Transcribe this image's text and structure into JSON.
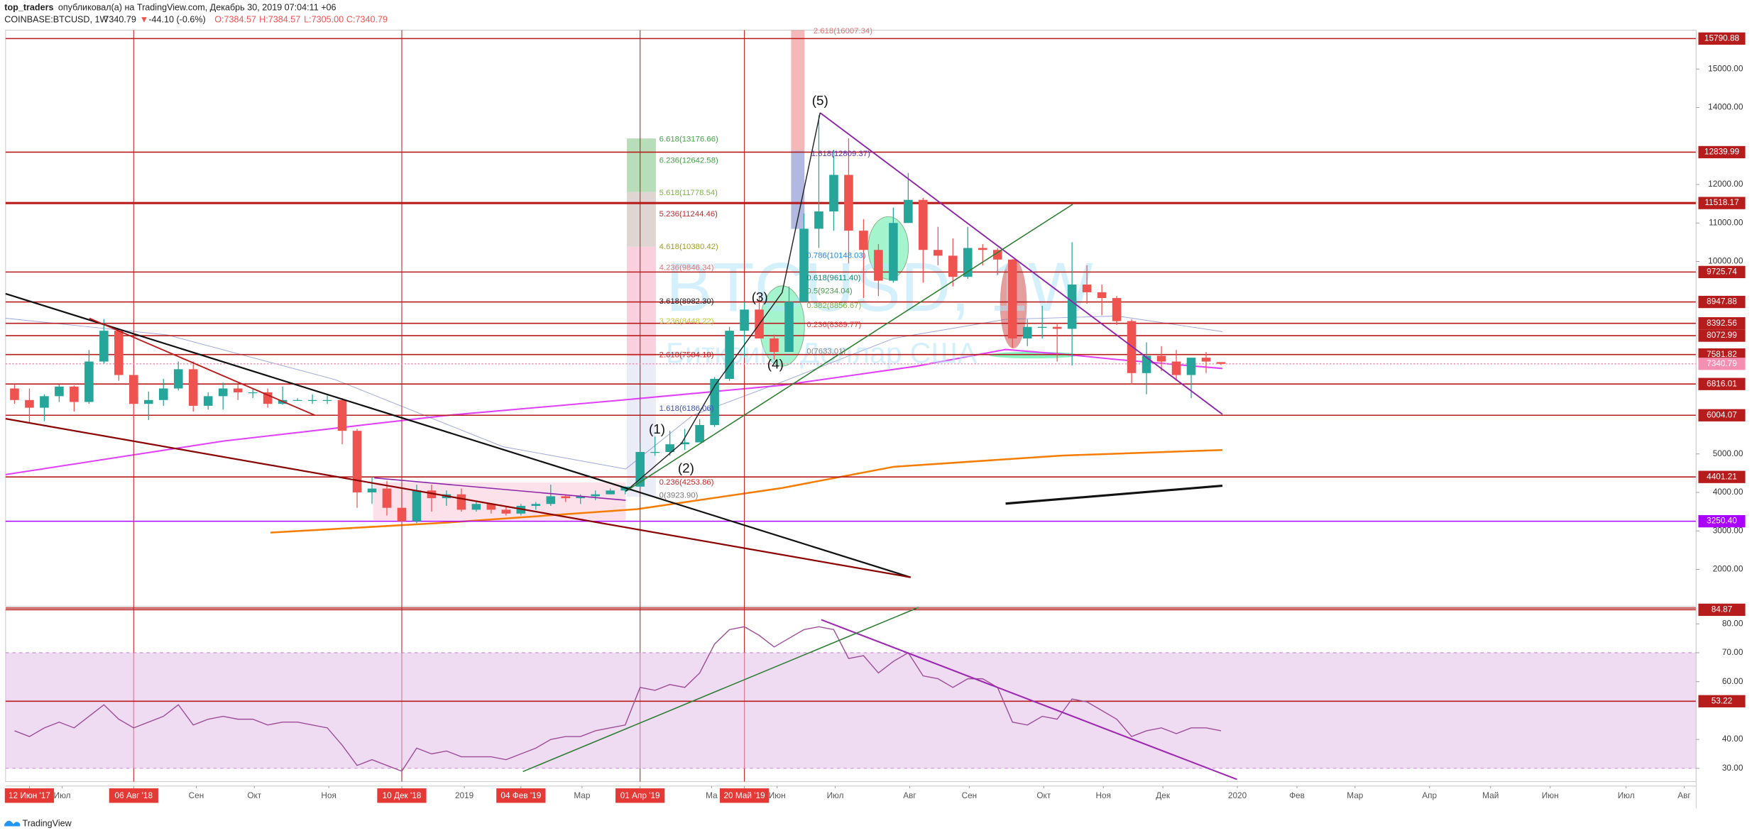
{
  "header": {
    "user": "top_traders",
    "published": "опубликовал(а) на TradingView.com, Декабрь 30, 2019 07:04:11 +06",
    "symbol": "COINBASE:BTCUSD, 1W",
    "last": "7340.79",
    "arrow": "▼",
    "change": "-44.10 (-0.6%)",
    "open": "O:7384.57",
    "high": "H:7384.57",
    "low": "L:7305.00",
    "close": "C:7340.79"
  },
  "footer": {
    "brand": "TradingView"
  },
  "chart_data": [
    {
      "type": "candlestick",
      "watermark": [
        "BTCUSD, 1W",
        "Биткоин / Доллар США"
      ],
      "up_color": "#26a69a",
      "down_color": "#ef5350",
      "x": [
        0,
        1,
        2,
        3,
        4,
        5,
        6,
        7,
        8,
        9,
        10,
        11,
        12,
        13,
        14,
        15,
        16,
        17,
        18,
        19,
        20,
        21,
        22,
        23,
        24,
        25,
        26,
        27,
        28,
        29,
        30,
        31,
        32,
        33,
        34,
        35,
        36,
        37,
        38,
        39,
        40,
        41,
        42,
        43,
        44,
        45,
        46,
        47,
        48,
        49,
        50,
        51,
        52,
        53,
        54,
        55,
        56,
        57,
        58,
        59,
        60,
        61,
        62,
        63,
        64,
        65,
        66,
        67,
        68,
        69,
        70,
        71,
        72,
        73,
        74,
        75,
        76,
        77,
        78,
        79,
        80,
        81
      ],
      "open": [
        6700,
        6400,
        6200,
        6500,
        6750,
        6350,
        7400,
        8200,
        7050,
        6300,
        6400,
        6700,
        7200,
        6250,
        6500,
        6700,
        6600,
        6600,
        6300,
        6400,
        6400,
        6400,
        6400,
        5600,
        4000,
        4100,
        3600,
        3250,
        4050,
        3850,
        3950,
        3550,
        3700,
        3550,
        3450,
        3650,
        3700,
        3900,
        3850,
        3900,
        3950,
        4050,
        4150,
        5050,
        5050,
        5250,
        5300,
        5750,
        6950,
        8200,
        8750,
        8000,
        7650,
        8950,
        10850,
        11300,
        12250,
        10800,
        10300,
        9500,
        11000,
        11600,
        10300,
        10150,
        9600,
        10350,
        10300,
        10050,
        8000,
        8300,
        8300,
        8250,
        9400,
        9200,
        9050,
        8450,
        7100,
        7550,
        7400,
        7050,
        7500,
        7384.57
      ],
      "high": [
        6800,
        6700,
        6550,
        6800,
        6780,
        7700,
        8500,
        8250,
        7150,
        6620,
        6950,
        7400,
        7400,
        6600,
        6850,
        6800,
        6700,
        6700,
        6750,
        6450,
        6550,
        6520,
        6450,
        5650,
        4400,
        4300,
        3600,
        4200,
        4200,
        4050,
        4100,
        3750,
        3700,
        3650,
        3700,
        3750,
        4200,
        3950,
        3950,
        4050,
        4100,
        4150,
        5300,
        5450,
        5600,
        5650,
        5900,
        7000,
        8300,
        8950,
        9100,
        8100,
        9350,
        11250,
        13800,
        12900,
        13200,
        11100,
        10450,
        11400,
        12300,
        11650,
        10900,
        10600,
        10900,
        10450,
        10350,
        10050,
        8500,
        8850,
        8400,
        10500,
        9900,
        9400,
        9100,
        8500,
        7900,
        7800,
        7700,
        7500,
        7650,
        7384.57
      ],
      "low": [
        6300,
        5800,
        5850,
        6350,
        6100,
        6300,
        7350,
        6900,
        5900,
        5880,
        6250,
        6650,
        6100,
        6150,
        6150,
        6400,
        6450,
        6200,
        6280,
        6380,
        6300,
        6300,
        5250,
        3600,
        3700,
        3400,
        3200,
        3200,
        3500,
        3650,
        3500,
        3500,
        3450,
        3400,
        3400,
        3550,
        3650,
        3750,
        3700,
        3800,
        3950,
        3950,
        4100,
        4950,
        4950,
        5100,
        5300,
        5700,
        6900,
        7500,
        8100,
        7450,
        7650,
        8950,
        10350,
        10800,
        9950,
        9050,
        9100,
        9450,
        11000,
        9450,
        9900,
        9350,
        9550,
        9900,
        9650,
        7750,
        7800,
        8000,
        7400,
        7300,
        8900,
        8600,
        8350,
        6800,
        6550,
        7150,
        6900,
        6450,
        7100,
        7305.0
      ],
      "close": [
        6400,
        6200,
        6500,
        6750,
        6350,
        7400,
        8200,
        7050,
        6300,
        6400,
        6700,
        7200,
        6250,
        6500,
        6700,
        6600,
        6600,
        6300,
        6400,
        6400,
        6400,
        6400,
        5600,
        4000,
        4100,
        3600,
        3250,
        4050,
        3850,
        3950,
        3550,
        3700,
        3550,
        3450,
        3650,
        3700,
        3900,
        3850,
        3900,
        3950,
        4050,
        4150,
        5050,
        5050,
        5250,
        5300,
        5750,
        6950,
        8200,
        8750,
        8000,
        7650,
        8950,
        10850,
        11300,
        12250,
        10800,
        10300,
        9500,
        11000,
        11600,
        10300,
        10150,
        9600,
        10350,
        10300,
        10050,
        8000,
        8300,
        8300,
        8250,
        9400,
        9200,
        9050,
        8450,
        7100,
        7550,
        7400,
        7050,
        7500,
        7400,
        7340.79
      ],
      "xlim": [
        -0.6,
        112.9
      ],
      "xticks": [
        {
          "value": 1,
          "label": "12 Июн '17"
        },
        {
          "value": 3.2,
          "label": "Июл"
        },
        {
          "value": 8,
          "label": "06 Авг '18"
        },
        {
          "value": 12.2,
          "label": "Сен"
        },
        {
          "value": 16.1,
          "label": "Окт"
        },
        {
          "value": 21.1,
          "label": "Ноя"
        },
        {
          "value": 26,
          "label": "10 Дек '18"
        },
        {
          "value": 30.2,
          "label": "2019"
        },
        {
          "value": 34,
          "label": "04 Фев '19"
        },
        {
          "value": 38.1,
          "label": "Мар"
        },
        {
          "value": 42,
          "label": "01 Апр '19"
        },
        {
          "value": 46.8,
          "label": "Ма"
        },
        {
          "value": 49,
          "label": "20 Май '19"
        },
        {
          "value": 51.2,
          "label": "Июн"
        },
        {
          "value": 55.1,
          "label": "Июл"
        },
        {
          "value": 60.1,
          "label": "Авг"
        },
        {
          "value": 64.1,
          "label": "Сен"
        },
        {
          "value": 69.1,
          "label": "Окт"
        },
        {
          "value": 73.1,
          "label": "Ноя"
        },
        {
          "value": 77.1,
          "label": "Дек"
        },
        {
          "value": 82.1,
          "label": "2020"
        },
        {
          "value": 86.1,
          "label": "Фев"
        },
        {
          "value": 90,
          "label": "Мар"
        },
        {
          "value": 95,
          "label": "Апр"
        },
        {
          "value": 99.1,
          "label": "Май"
        },
        {
          "value": 103.1,
          "label": "Июн"
        },
        {
          "value": 108.2,
          "label": "Июл"
        },
        {
          "value": 112.1,
          "label": "Авг"
        }
      ],
      "ylim": [
        1040,
        16010
      ],
      "yticks": [
        {
          "value": 2000,
          "label": "2000.00"
        },
        {
          "value": 3000,
          "label": "3000.00"
        },
        {
          "value": 4000,
          "label": "4000.00"
        },
        {
          "value": 5000,
          "label": "5000.00"
        },
        {
          "value": 10000,
          "label": "10000.00"
        },
        {
          "value": 11000,
          "label": "11000.00"
        },
        {
          "value": 12000,
          "label": "12000.00"
        },
        {
          "value": 14000,
          "label": "14000.00"
        },
        {
          "value": 15000,
          "label": "15000.00"
        }
      ],
      "levels": [
        {
          "value": 15790.88,
          "label": "15790.88",
          "color": "#b71c1c"
        },
        {
          "value": 12839.99,
          "label": "12839.99",
          "color": "#b71c1c"
        },
        {
          "value": 11518.17,
          "label": "11518.17",
          "color": "#b71c1c"
        },
        {
          "value": 9725.74,
          "label": "9725.74",
          "color": "#b71c1c"
        },
        {
          "value": 8947.88,
          "label": "8947.88",
          "color": "#b71c1c"
        },
        {
          "value": 8392.56,
          "label": "8392.56",
          "color": "#b71c1c"
        },
        {
          "value": 8072.99,
          "label": "8072.99",
          "color": "#b71c1c"
        },
        {
          "value": 7581.82,
          "label": "7581.82",
          "color": "#b71c1c"
        },
        {
          "value": 7340.79,
          "label": "7340.79",
          "color": "#f48fb1"
        },
        {
          "value": 6816.01,
          "label": "6816.01",
          "color": "#b71c1c"
        },
        {
          "value": 6004.07,
          "label": "6004.07",
          "color": "#b71c1c"
        },
        {
          "value": 4401.21,
          "label": "4401.21",
          "color": "#b71c1c"
        },
        {
          "value": 3250.4,
          "label": "3250.40",
          "color": "#aa00ff"
        }
      ],
      "annotations": [
        "2.618(16007.34)",
        "6.618(13176.66)",
        "6.236(12642.58)",
        "5.618(11778.54)",
        "5.236(11244.46)",
        "4.618(10380.42)",
        "4.236(9846.34)",
        "3.618(8982.30)",
        "3.236(8448.22)",
        "2.618(7584.18)",
        "1.618(6186.06)",
        "0.236(4253.86)",
        "0(3923.90)",
        "1.618(12809.37)",
        "0.786(10148.03)",
        "0.618(9611.40)",
        "0.5(9234.04)",
        "0.382(8856.67)",
        "0.236(8389.77)",
        "0(7633.01)",
        "(1)",
        "(2)",
        "(3)",
        "(4)",
        "(5)"
      ]
    },
    {
      "type": "line",
      "color": "#9c4f96",
      "x": [
        0,
        1,
        2,
        3,
        4,
        5,
        6,
        7,
        8,
        9,
        10,
        11,
        12,
        13,
        14,
        15,
        16,
        17,
        18,
        19,
        20,
        21,
        22,
        23,
        24,
        25,
        26,
        27,
        28,
        29,
        30,
        31,
        32,
        33,
        34,
        35,
        36,
        37,
        38,
        39,
        40,
        41,
        42,
        43,
        44,
        45,
        46,
        47,
        48,
        49,
        50,
        51,
        52,
        53,
        54,
        55,
        56,
        57,
        58,
        59,
        60,
        61,
        62,
        63,
        64,
        65,
        66,
        67,
        68,
        69,
        70,
        71,
        72,
        73,
        74,
        75,
        76,
        77,
        78,
        79,
        80,
        81
      ],
      "values": [
        43,
        41,
        44,
        46,
        44,
        48,
        52,
        47,
        44,
        46,
        48,
        52,
        45,
        47,
        48,
        47,
        47,
        45,
        46,
        46,
        45,
        44,
        38,
        31,
        33,
        31,
        29,
        37,
        35,
        36,
        34,
        34,
        34,
        33,
        35,
        37,
        40,
        41,
        41,
        43,
        44,
        45,
        58,
        57,
        59,
        58,
        63,
        73,
        78,
        79,
        76,
        72,
        75,
        78,
        79,
        78,
        68,
        69,
        63,
        67,
        70,
        62,
        61,
        58,
        61,
        61,
        58,
        46,
        45,
        48,
        47,
        54,
        53,
        50,
        47,
        41,
        43,
        44,
        42,
        44,
        44,
        43
      ],
      "ylim": [
        25.4,
        84.9
      ],
      "yticks": [
        {
          "value": 30,
          "label": "30.00"
        },
        {
          "value": 40,
          "label": "40.00"
        },
        {
          "value": 60,
          "label": "60.00"
        },
        {
          "value": 70,
          "label": "70.00"
        },
        {
          "value": 80,
          "label": "80.00"
        }
      ],
      "band": [
        30,
        70
      ],
      "band_color": "#e1bee7",
      "levels": [
        {
          "value": 84.87,
          "label": "84.87",
          "color": "#b71c1c"
        },
        {
          "value": 53.22,
          "label": "53.22",
          "color": "#b71c1c"
        }
      ]
    }
  ]
}
